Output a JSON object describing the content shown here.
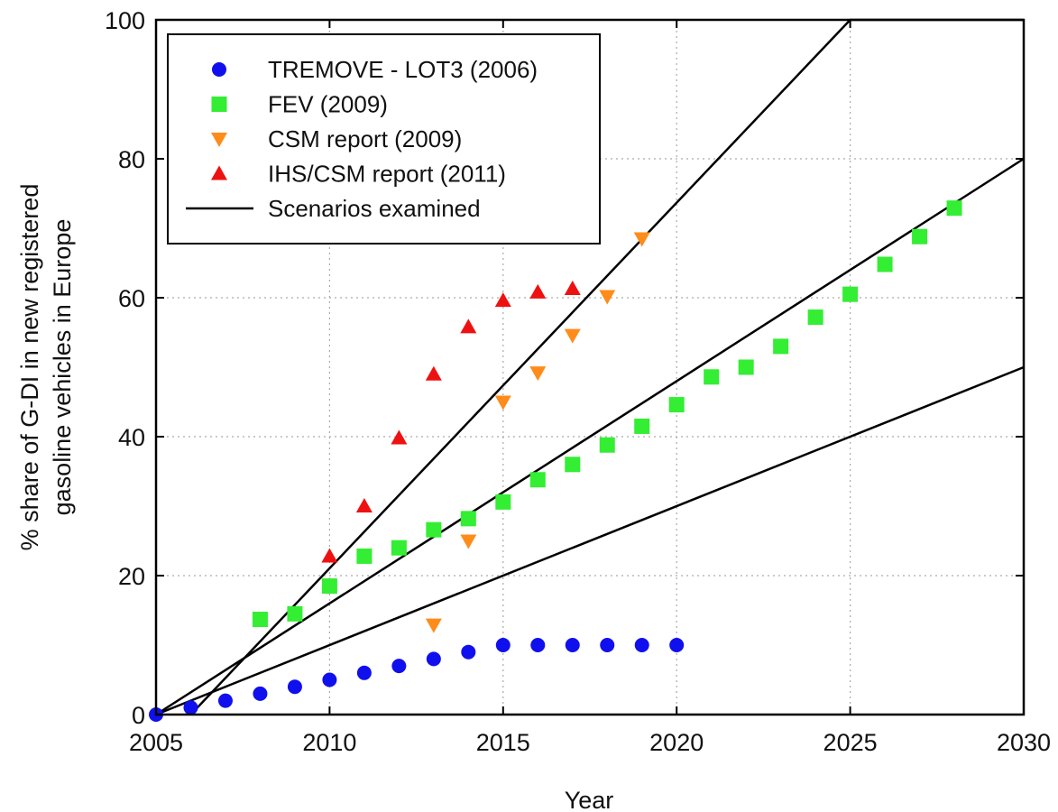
{
  "chart_data": {
    "type": "scatter",
    "title": "",
    "xlabel": "Year",
    "ylabel_lines": [
      "% share of G-DI in new registered",
      "gasoline vehicles in Europe"
    ],
    "xlim": [
      2005,
      2030
    ],
    "ylim": [
      0,
      100
    ],
    "x_ticks": [
      2005,
      2010,
      2015,
      2020,
      2025,
      2030
    ],
    "y_ticks": [
      0,
      20,
      40,
      60,
      80,
      100
    ],
    "grid": true,
    "grid_style": "dotted",
    "legend_position": "top-left",
    "series": [
      {
        "name": "TREMOVE - LOT3 (2006)",
        "marker": "circle",
        "color": "#1010ee",
        "points": [
          [
            2005,
            0
          ],
          [
            2006,
            1
          ],
          [
            2007,
            2
          ],
          [
            2008,
            3
          ],
          [
            2009,
            4
          ],
          [
            2010,
            5
          ],
          [
            2011,
            6
          ],
          [
            2012,
            7
          ],
          [
            2013,
            8
          ],
          [
            2014,
            9
          ],
          [
            2015,
            10
          ],
          [
            2016,
            10
          ],
          [
            2017,
            10
          ],
          [
            2018,
            10
          ],
          [
            2019,
            10
          ],
          [
            2020,
            10
          ]
        ]
      },
      {
        "name": "FEV (2009)",
        "marker": "square",
        "color": "#33ee33",
        "points": [
          [
            2008,
            13.7
          ],
          [
            2009,
            14.5
          ],
          [
            2010,
            18.5
          ],
          [
            2011,
            22.8
          ],
          [
            2012,
            24.0
          ],
          [
            2013,
            26.6
          ],
          [
            2014,
            28.2
          ],
          [
            2015,
            30.6
          ],
          [
            2016,
            33.8
          ],
          [
            2017,
            36.0
          ],
          [
            2018,
            38.8
          ],
          [
            2019,
            41.5
          ],
          [
            2020,
            44.6
          ],
          [
            2021,
            48.6
          ],
          [
            2022,
            50.0
          ],
          [
            2023,
            53.0
          ],
          [
            2024,
            57.2
          ],
          [
            2025,
            60.5
          ],
          [
            2026,
            64.8
          ],
          [
            2027,
            68.8
          ],
          [
            2028,
            72.9
          ]
        ]
      },
      {
        "name": "CSM report (2009)",
        "marker": "triangle-down",
        "color": "#ff8c1a",
        "points": [
          [
            2013,
            12.9
          ],
          [
            2014,
            25.0
          ],
          [
            2015,
            45.0
          ],
          [
            2016,
            49.2
          ],
          [
            2017,
            54.6
          ],
          [
            2018,
            60.2
          ],
          [
            2019,
            68.5
          ]
        ]
      },
      {
        "name": "IHS/CSM report (2011)",
        "marker": "triangle-up",
        "color": "#ee1111",
        "points": [
          [
            2010,
            22.8
          ],
          [
            2011,
            30.0
          ],
          [
            2012,
            39.8
          ],
          [
            2013,
            49.0
          ],
          [
            2014,
            55.8
          ],
          [
            2015,
            59.6
          ],
          [
            2016,
            60.8
          ],
          [
            2017,
            61.3
          ]
        ]
      }
    ],
    "lines": [
      {
        "name": "Scenarios examined",
        "color": "#000000",
        "segments": [
          [
            [
              2006,
              0
            ],
            [
              2025,
              100
            ],
            [
              2030,
              100
            ]
          ],
          [
            [
              2005,
              0
            ],
            [
              2030,
              80
            ]
          ],
          [
            [
              2005,
              0
            ],
            [
              2030,
              50
            ]
          ]
        ]
      }
    ]
  }
}
